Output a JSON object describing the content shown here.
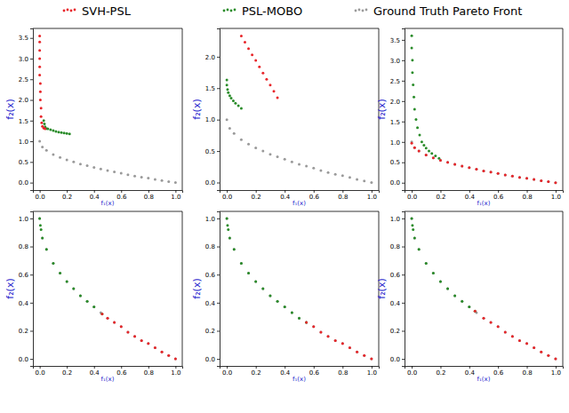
{
  "chart_data": [
    {
      "type": "scatter",
      "xlabel": "f₁(x)",
      "ylabel": "f₂(x)",
      "legend": "top",
      "marker": "o",
      "xlim": [
        -0.05,
        1.05
      ],
      "ylim": [
        -0.18,
        3.73
      ],
      "xticks": [
        {
          "value": 0,
          "label": "0.0"
        },
        0.2,
        0.4,
        0.6,
        0.8,
        {
          "value": 1,
          "label": "1.0"
        }
      ],
      "yticks": [
        {
          "value": 0,
          "label": "0.0"
        },
        0.5,
        {
          "value": 1,
          "label": "1.0"
        },
        1.5,
        {
          "value": 2,
          "label": "2.0"
        },
        2.5,
        {
          "value": 3,
          "label": "3.0"
        },
        3.5
      ],
      "series": [
        {
          "name": "SVH-PSL",
          "color": "#e8262a",
          "x": [
            0.0,
            0.0,
            0.0,
            0.0,
            0.0,
            0.0,
            0.005,
            0.005,
            0.005,
            0.01,
            0.01,
            0.015,
            0.02,
            0.03,
            0.04
          ],
          "y": [
            3.55,
            3.4,
            3.2,
            3.0,
            2.8,
            2.6,
            2.4,
            2.2,
            2.0,
            1.8,
            1.6,
            1.45,
            1.36,
            1.32,
            1.3
          ]
        },
        {
          "name": "PSL-MOBO",
          "color": "#2a8c2a",
          "x": [
            0.03,
            0.035,
            0.04,
            0.05,
            0.06,
            0.08,
            0.1,
            0.12,
            0.14,
            0.16,
            0.18,
            0.2,
            0.22
          ],
          "y": [
            1.5,
            1.42,
            1.35,
            1.31,
            1.3,
            1.28,
            1.26,
            1.24,
            1.22,
            1.21,
            1.2,
            1.19,
            1.18
          ]
        },
        {
          "name": "Ground Truth Pareto Front",
          "color": "#9a9a9a",
          "x": [
            0.0,
            0.02,
            0.05,
            0.1,
            0.15,
            0.2,
            0.25,
            0.3,
            0.35,
            0.4,
            0.45,
            0.5,
            0.55,
            0.6,
            0.65,
            0.7,
            0.75,
            0.8,
            0.85,
            0.9,
            0.95,
            1.0
          ],
          "y": [
            1.0,
            0.86,
            0.78,
            0.68,
            0.61,
            0.55,
            0.5,
            0.45,
            0.41,
            0.37,
            0.33,
            0.29,
            0.26,
            0.23,
            0.19,
            0.16,
            0.13,
            0.11,
            0.08,
            0.05,
            0.025,
            0.0
          ]
        }
      ]
    },
    {
      "type": "scatter",
      "xlabel": "f₁(x)",
      "ylabel": "f₂(x)",
      "marker": "o",
      "xlim": [
        -0.05,
        1.05
      ],
      "ylim": [
        -0.12,
        2.45
      ],
      "xticks": [
        {
          "value": 0,
          "label": "0.0"
        },
        0.2,
        0.4,
        0.6,
        0.8,
        {
          "value": 1,
          "label": "1.0"
        }
      ],
      "yticks": [
        {
          "value": 0,
          "label": "0.0"
        },
        0.5,
        {
          "value": 1,
          "label": "1.0"
        },
        1.5,
        {
          "value": 2,
          "label": "2.0"
        }
      ],
      "series": [
        {
          "color": "#e8262a",
          "x": [
            0.1,
            0.125,
            0.15,
            0.175,
            0.2,
            0.225,
            0.25,
            0.275,
            0.3,
            0.325,
            0.35
          ],
          "y": [
            2.33,
            2.23,
            2.13,
            2.03,
            1.94,
            1.84,
            1.74,
            1.64,
            1.55,
            1.45,
            1.35
          ]
        },
        {
          "color": "#2a8c2a",
          "x": [
            0.0,
            0.0,
            0.005,
            0.01,
            0.02,
            0.03,
            0.045,
            0.06,
            0.08,
            0.1
          ],
          "y": [
            1.63,
            1.55,
            1.48,
            1.43,
            1.38,
            1.34,
            1.3,
            1.26,
            1.22,
            1.18
          ]
        },
        {
          "color": "#9a9a9a",
          "x": [
            0.0,
            0.02,
            0.05,
            0.1,
            0.15,
            0.2,
            0.25,
            0.3,
            0.35,
            0.4,
            0.45,
            0.5,
            0.55,
            0.6,
            0.65,
            0.7,
            0.75,
            0.8,
            0.85,
            0.9,
            0.95,
            1.0
          ],
          "y": [
            1.0,
            0.86,
            0.78,
            0.68,
            0.61,
            0.55,
            0.5,
            0.45,
            0.41,
            0.37,
            0.33,
            0.29,
            0.26,
            0.23,
            0.19,
            0.16,
            0.13,
            0.11,
            0.08,
            0.05,
            0.025,
            0.0
          ]
        }
      ]
    },
    {
      "type": "scatter",
      "xlabel": "f₁(x)",
      "ylabel": "f₂(x)",
      "marker": "o",
      "xlim": [
        -0.05,
        1.05
      ],
      "ylim": [
        -0.18,
        3.78
      ],
      "xticks": [
        {
          "value": 0,
          "label": "0.0"
        },
        0.2,
        0.4,
        0.6,
        0.8,
        {
          "value": 1,
          "label": "1.0"
        }
      ],
      "yticks": [
        {
          "value": 0,
          "label": "0.0"
        },
        0.5,
        {
          "value": 1,
          "label": "1.0"
        },
        1.5,
        {
          "value": 2,
          "label": "2.0"
        },
        2.5,
        {
          "value": 3,
          "label": "3.0"
        },
        3.5
      ],
      "series": [
        {
          "color": "#e8262a",
          "x": [
            0.0,
            0.02,
            0.05,
            0.1,
            0.15,
            0.2,
            0.25,
            0.3,
            0.35,
            0.4,
            0.45,
            0.5,
            0.55,
            0.6,
            0.65,
            0.7,
            0.75,
            0.8,
            0.85,
            0.9,
            0.95,
            1.0
          ],
          "y": [
            0.97,
            0.86,
            0.78,
            0.68,
            0.61,
            0.55,
            0.5,
            0.45,
            0.41,
            0.37,
            0.33,
            0.29,
            0.26,
            0.23,
            0.19,
            0.16,
            0.13,
            0.11,
            0.08,
            0.05,
            0.025,
            0.0
          ]
        },
        {
          "color": "#2a8c2a",
          "x": [
            0.0,
            0.0,
            0.005,
            0.005,
            0.01,
            0.015,
            0.02,
            0.03,
            0.04,
            0.055,
            0.07,
            0.085,
            0.1,
            0.12,
            0.14,
            0.165,
            0.19
          ],
          "y": [
            3.6,
            3.3,
            3.0,
            2.7,
            2.4,
            2.1,
            1.8,
            1.55,
            1.35,
            1.17,
            1.0,
            0.92,
            0.85,
            0.78,
            0.72,
            0.66,
            0.6
          ]
        },
        {
          "color": "#9a9a9a",
          "x": [
            0.0,
            0.02,
            0.05,
            0.1,
            0.15,
            0.2,
            0.25,
            0.3,
            0.35,
            0.4,
            0.45,
            0.5,
            0.55,
            0.6,
            0.65,
            0.7,
            0.75,
            0.8,
            0.85,
            0.9,
            0.95,
            1.0
          ],
          "y": [
            1.0,
            0.86,
            0.78,
            0.68,
            0.61,
            0.55,
            0.5,
            0.45,
            0.41,
            0.37,
            0.33,
            0.29,
            0.26,
            0.23,
            0.19,
            0.16,
            0.13,
            0.11,
            0.08,
            0.05,
            0.025,
            0.0
          ]
        }
      ]
    },
    {
      "type": "scatter",
      "xlabel": "f₁(x)",
      "ylabel": "f₂(x)",
      "marker": "o",
      "xlim": [
        -0.05,
        1.05
      ],
      "ylim": [
        -0.05,
        1.05
      ],
      "xticks": [
        {
          "value": 0,
          "label": "0.0"
        },
        0.2,
        0.4,
        0.6,
        0.8,
        {
          "value": 1,
          "label": "1.0"
        }
      ],
      "yticks": [
        {
          "value": 0,
          "label": "0.0"
        },
        0.2,
        0.4,
        0.6,
        0.8,
        {
          "value": 1,
          "label": "1.0"
        }
      ],
      "series": [
        {
          "color": "#e8262a",
          "x": [
            0.46,
            0.5,
            0.55,
            0.6,
            0.65,
            0.7,
            0.75,
            0.8,
            0.85,
            0.9,
            0.95,
            1.0
          ],
          "y": [
            0.32,
            0.29,
            0.26,
            0.23,
            0.19,
            0.16,
            0.13,
            0.11,
            0.08,
            0.05,
            0.025,
            0.0
          ]
        },
        {
          "color": "#2a8c2a",
          "x": [
            0.0,
            0.005,
            0.01,
            0.02,
            0.05,
            0.1,
            0.15,
            0.2,
            0.25,
            0.3,
            0.35,
            0.4,
            0.46
          ],
          "y": [
            1.0,
            0.95,
            0.92,
            0.86,
            0.78,
            0.68,
            0.61,
            0.55,
            0.5,
            0.45,
            0.41,
            0.37,
            0.32
          ]
        },
        {
          "color": "#9a9a9a",
          "x": [
            0.0,
            0.02,
            0.05,
            0.1,
            0.15,
            0.2,
            0.25,
            0.3,
            0.35,
            0.4,
            0.45,
            0.5,
            0.55,
            0.6,
            0.65,
            0.7,
            0.75,
            0.8,
            0.85,
            0.9,
            0.95,
            1.0
          ],
          "y": [
            1.0,
            0.86,
            0.78,
            0.68,
            0.61,
            0.55,
            0.5,
            0.45,
            0.41,
            0.37,
            0.33,
            0.29,
            0.26,
            0.23,
            0.19,
            0.16,
            0.13,
            0.11,
            0.08,
            0.05,
            0.025,
            0.0
          ]
        }
      ]
    },
    {
      "type": "scatter",
      "xlabel": "f₁(x)",
      "ylabel": "f₂(x)",
      "marker": "o",
      "xlim": [
        -0.05,
        1.05
      ],
      "ylim": [
        -0.05,
        1.05
      ],
      "xticks": [
        {
          "value": 0,
          "label": "0.0"
        },
        0.2,
        0.4,
        0.6,
        0.8,
        {
          "value": 1,
          "label": "1.0"
        }
      ],
      "yticks": [
        {
          "value": 0,
          "label": "0.0"
        },
        0.2,
        0.4,
        0.6,
        0.8,
        {
          "value": 1,
          "label": "1.0"
        }
      ],
      "series": [
        {
          "color": "#e8262a",
          "x": [
            0.55,
            0.6,
            0.65,
            0.7,
            0.75,
            0.8,
            0.85,
            0.9,
            0.95,
            1.0
          ],
          "y": [
            0.26,
            0.23,
            0.19,
            0.16,
            0.13,
            0.11,
            0.08,
            0.05,
            0.025,
            0.0
          ]
        },
        {
          "color": "#2a8c2a",
          "x": [
            0.0,
            0.005,
            0.01,
            0.02,
            0.05,
            0.1,
            0.15,
            0.2,
            0.25,
            0.3,
            0.35,
            0.4,
            0.45,
            0.5,
            0.55
          ],
          "y": [
            1.0,
            0.95,
            0.92,
            0.86,
            0.78,
            0.68,
            0.61,
            0.55,
            0.5,
            0.45,
            0.41,
            0.37,
            0.33,
            0.29,
            0.26
          ]
        },
        {
          "color": "#9a9a9a",
          "x": [
            0.0,
            0.02,
            0.05,
            0.1,
            0.15,
            0.2,
            0.25,
            0.3,
            0.35,
            0.4,
            0.45,
            0.5,
            0.55,
            0.6,
            0.65,
            0.7,
            0.75,
            0.8,
            0.85,
            0.9,
            0.95,
            1.0
          ],
          "y": [
            1.0,
            0.86,
            0.78,
            0.68,
            0.61,
            0.55,
            0.5,
            0.45,
            0.41,
            0.37,
            0.33,
            0.29,
            0.26,
            0.23,
            0.19,
            0.16,
            0.13,
            0.11,
            0.08,
            0.05,
            0.025,
            0.0
          ]
        }
      ]
    },
    {
      "type": "scatter",
      "xlabel": "f₁(x)",
      "ylabel": "f₂(x)",
      "marker": "o",
      "xlim": [
        -0.05,
        1.05
      ],
      "ylim": [
        -0.05,
        1.05
      ],
      "xticks": [
        {
          "value": 0,
          "label": "0.0"
        },
        0.2,
        0.4,
        0.6,
        0.8,
        {
          "value": 1,
          "label": "1.0"
        }
      ],
      "yticks": [
        {
          "value": 0,
          "label": "0.0"
        },
        0.2,
        0.4,
        0.6,
        0.8,
        {
          "value": 1,
          "label": "1.0"
        }
      ],
      "series": [
        {
          "color": "#e8262a",
          "x": [
            0.44,
            0.5,
            0.55,
            0.6,
            0.65,
            0.7,
            0.75,
            0.8,
            0.85,
            0.9,
            0.95,
            1.0
          ],
          "y": [
            0.34,
            0.29,
            0.26,
            0.23,
            0.19,
            0.16,
            0.13,
            0.11,
            0.08,
            0.05,
            0.025,
            0.0
          ]
        },
        {
          "color": "#2a8c2a",
          "x": [
            0.0,
            0.005,
            0.01,
            0.02,
            0.05,
            0.1,
            0.15,
            0.2,
            0.25,
            0.3,
            0.35,
            0.4,
            0.44
          ],
          "y": [
            1.0,
            0.95,
            0.92,
            0.86,
            0.78,
            0.68,
            0.61,
            0.55,
            0.5,
            0.45,
            0.41,
            0.37,
            0.34
          ]
        },
        {
          "color": "#9a9a9a",
          "x": [
            0.0,
            0.02,
            0.05,
            0.1,
            0.15,
            0.2,
            0.25,
            0.3,
            0.35,
            0.4,
            0.45,
            0.5,
            0.55,
            0.6,
            0.65,
            0.7,
            0.75,
            0.8,
            0.85,
            0.9,
            0.95,
            1.0
          ],
          "y": [
            1.0,
            0.86,
            0.78,
            0.68,
            0.61,
            0.55,
            0.5,
            0.45,
            0.41,
            0.37,
            0.33,
            0.29,
            0.26,
            0.23,
            0.19,
            0.16,
            0.13,
            0.11,
            0.08,
            0.05,
            0.025,
            0.0
          ]
        }
      ]
    }
  ]
}
